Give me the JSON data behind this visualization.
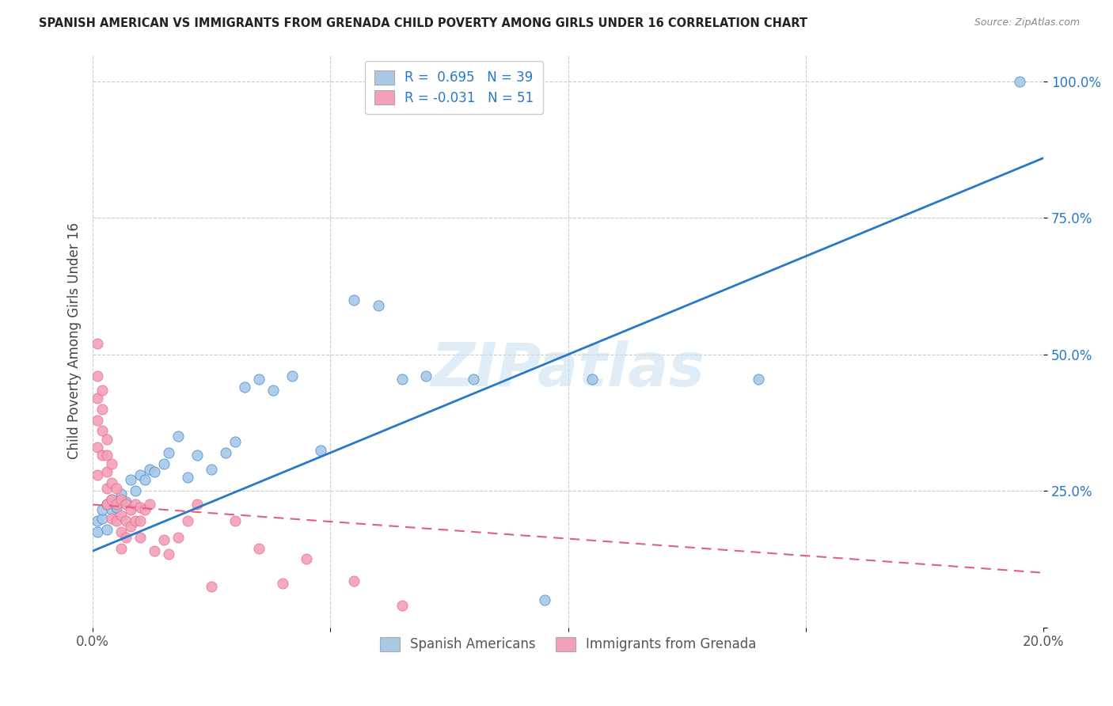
{
  "title": "SPANISH AMERICAN VS IMMIGRANTS FROM GRENADA CHILD POVERTY AMONG GIRLS UNDER 16 CORRELATION CHART",
  "source": "Source: ZipAtlas.com",
  "ylabel": "Child Poverty Among Girls Under 16",
  "blue_R": 0.695,
  "blue_N": 39,
  "pink_R": -0.031,
  "pink_N": 51,
  "blue_color": "#a8c8e8",
  "pink_color": "#f4a0b8",
  "blue_line_color": "#2878c8",
  "pink_line_color": "#e06080",
  "watermark": "ZIPatlas",
  "legend_label_blue": "Spanish Americans",
  "legend_label_pink": "Immigrants from Grenada",
  "xlim": [
    0.0,
    0.2
  ],
  "ylim": [
    0.0,
    1.05
  ],
  "yticks": [
    0.0,
    0.25,
    0.5,
    0.75,
    1.0
  ],
  "ytick_labels": [
    "",
    "25.0%",
    "50.0%",
    "75.0%",
    "100.0%"
  ],
  "xticks": [
    0.0,
    0.05,
    0.1,
    0.15,
    0.2
  ],
  "xtick_labels": [
    "0.0%",
    "",
    "",
    "",
    "20.0%"
  ],
  "blue_line_x0": 0.0,
  "blue_line_y0": 0.14,
  "blue_line_x1": 0.2,
  "blue_line_y1": 0.86,
  "pink_line_x0": 0.0,
  "pink_line_y0": 0.225,
  "pink_line_x1": 0.2,
  "pink_line_y1": 0.1,
  "blue_x": [
    0.001,
    0.001,
    0.002,
    0.002,
    0.003,
    0.003,
    0.004,
    0.004,
    0.005,
    0.006,
    0.007,
    0.008,
    0.009,
    0.01,
    0.011,
    0.012,
    0.013,
    0.015,
    0.016,
    0.018,
    0.02,
    0.022,
    0.025,
    0.028,
    0.03,
    0.032,
    0.035,
    0.038,
    0.042,
    0.048,
    0.055,
    0.06,
    0.065,
    0.07,
    0.08,
    0.095,
    0.105,
    0.14,
    0.195
  ],
  "blue_y": [
    0.175,
    0.195,
    0.2,
    0.215,
    0.18,
    0.225,
    0.215,
    0.235,
    0.22,
    0.245,
    0.23,
    0.27,
    0.25,
    0.28,
    0.27,
    0.29,
    0.285,
    0.3,
    0.32,
    0.35,
    0.275,
    0.315,
    0.29,
    0.32,
    0.34,
    0.44,
    0.455,
    0.435,
    0.46,
    0.325,
    0.6,
    0.59,
    0.455,
    0.46,
    0.455,
    0.05,
    0.455,
    0.455,
    1.0
  ],
  "pink_x": [
    0.001,
    0.001,
    0.001,
    0.001,
    0.001,
    0.001,
    0.002,
    0.002,
    0.002,
    0.002,
    0.003,
    0.003,
    0.003,
    0.003,
    0.003,
    0.004,
    0.004,
    0.004,
    0.004,
    0.005,
    0.005,
    0.005,
    0.006,
    0.006,
    0.006,
    0.006,
    0.007,
    0.007,
    0.007,
    0.008,
    0.008,
    0.009,
    0.009,
    0.01,
    0.01,
    0.01,
    0.011,
    0.012,
    0.013,
    0.015,
    0.016,
    0.018,
    0.02,
    0.022,
    0.025,
    0.03,
    0.035,
    0.04,
    0.045,
    0.055,
    0.065
  ],
  "pink_y": [
    0.52,
    0.46,
    0.42,
    0.38,
    0.33,
    0.28,
    0.435,
    0.4,
    0.36,
    0.315,
    0.345,
    0.315,
    0.285,
    0.255,
    0.225,
    0.3,
    0.265,
    0.235,
    0.2,
    0.255,
    0.225,
    0.195,
    0.235,
    0.205,
    0.175,
    0.145,
    0.225,
    0.195,
    0.165,
    0.215,
    0.185,
    0.225,
    0.195,
    0.22,
    0.195,
    0.165,
    0.215,
    0.225,
    0.14,
    0.16,
    0.135,
    0.165,
    0.195,
    0.225,
    0.075,
    0.195,
    0.145,
    0.08,
    0.125,
    0.085,
    0.04
  ]
}
